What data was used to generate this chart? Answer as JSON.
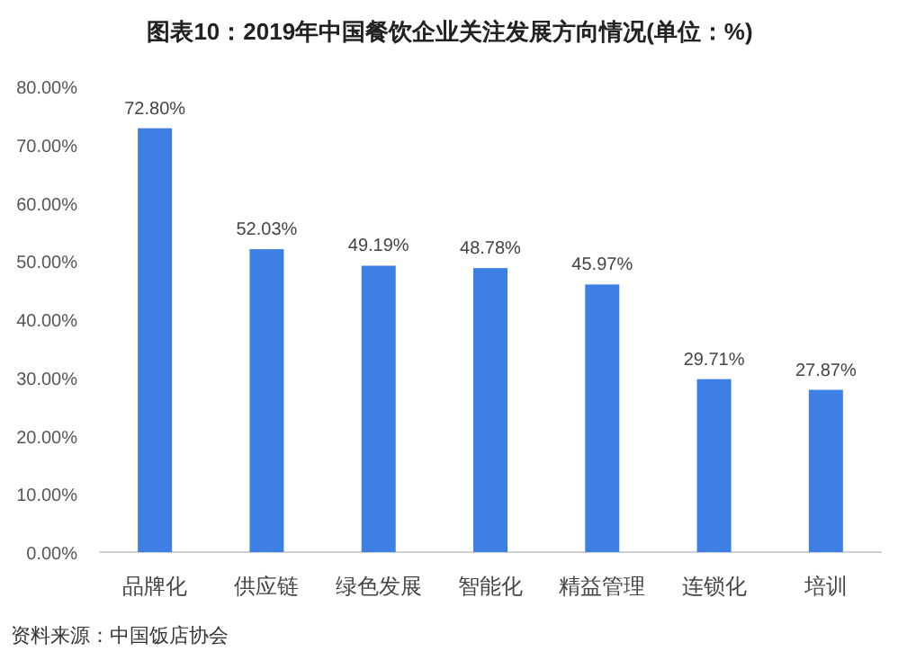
{
  "chart_data": {
    "type": "bar",
    "title": "图表10：2019年中国餐饮企业关注发展方向情况(单位：%)",
    "categories": [
      "品牌化",
      "供应链",
      "绿色发展",
      "智能化",
      "精益管理",
      "连锁化",
      "培训"
    ],
    "values": [
      72.8,
      52.03,
      49.19,
      48.78,
      45.97,
      29.71,
      27.87
    ],
    "value_labels": [
      "72.80%",
      "52.03%",
      "49.19%",
      "48.78%",
      "45.97%",
      "29.71%",
      "27.87%"
    ],
    "color": "#3d7fe2",
    "ylim": [
      0,
      80
    ],
    "yticks": [
      {
        "value": 0,
        "label": "0.00%"
      },
      {
        "value": 10,
        "label": "10.00%"
      },
      {
        "value": 20,
        "label": "20.00%"
      },
      {
        "value": 30,
        "label": "30.00%"
      },
      {
        "value": 40,
        "label": "40.00%"
      },
      {
        "value": 50,
        "label": "50.00%"
      },
      {
        "value": 60,
        "label": "60.00%"
      },
      {
        "value": 70,
        "label": "70.00%"
      },
      {
        "value": 80,
        "label": "80.00%"
      }
    ],
    "grid": false,
    "annotations": [
      "资料来源：中国饭店协会"
    ]
  }
}
